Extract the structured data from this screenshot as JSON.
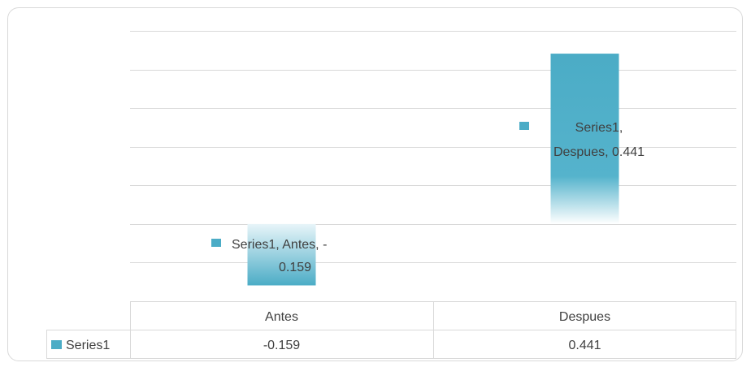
{
  "chart_data": {
    "type": "bar",
    "categories": [
      "Antes",
      "Despues"
    ],
    "series": [
      {
        "name": "Series1",
        "values": [
          -0.159,
          0.441
        ]
      }
    ],
    "ylim": [
      -0.2,
      0.5
    ],
    "grid": true,
    "legend": "data-table",
    "bar_color": "#4bacc6",
    "data_labels": [
      {
        "series": "Series1",
        "category": "Antes",
        "value": "-0.159"
      },
      {
        "series": "Series1",
        "category": "Despues",
        "value": "0.441"
      }
    ],
    "data_table": {
      "row_label": "Series1",
      "cells": [
        "-0.159",
        "0.441"
      ]
    }
  }
}
